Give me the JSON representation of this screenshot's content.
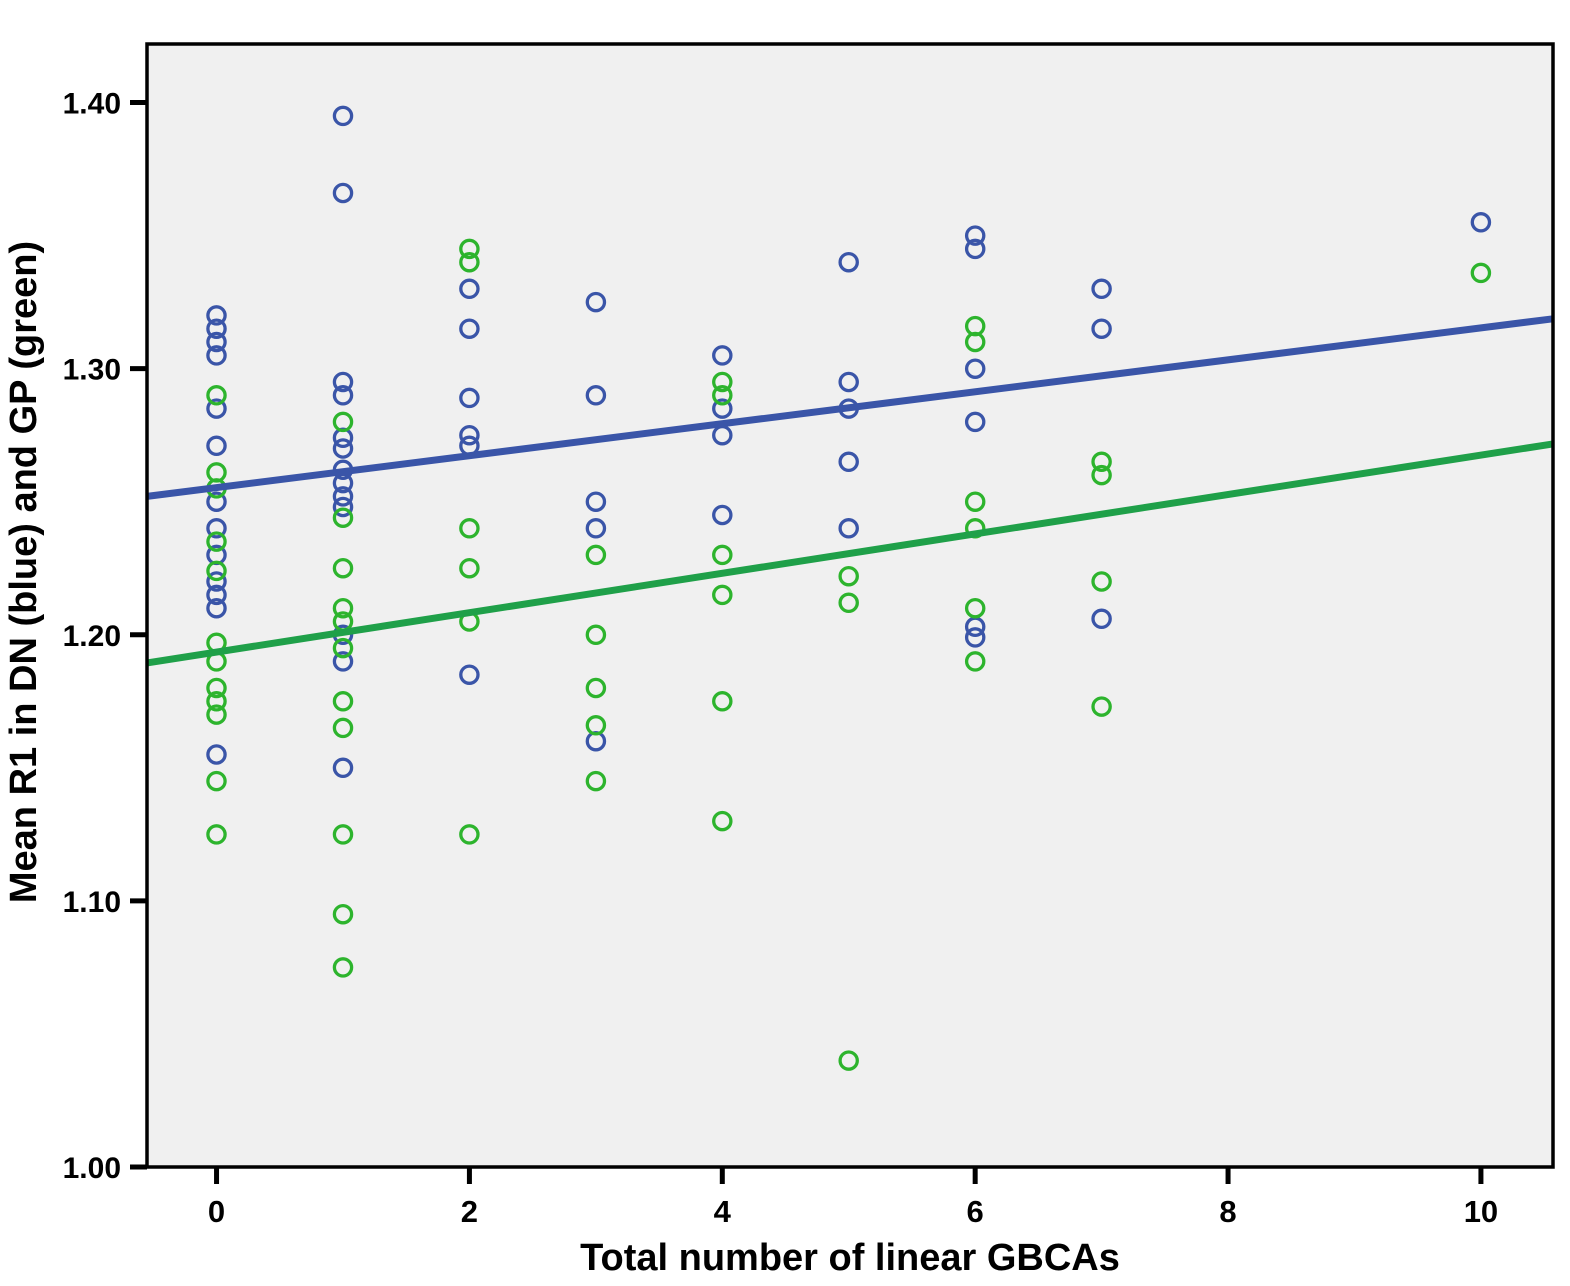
{
  "chart_data": {
    "type": "scatter",
    "title": "",
    "xlabel": "Total number of linear GBCAs",
    "ylabel": "Mean R1 in DN (blue) and GP (green)",
    "xlim": [
      -0.55,
      10.57
    ],
    "ylim": [
      1.0,
      1.422
    ],
    "x_ticks": [
      0,
      2,
      4,
      6,
      8,
      10
    ],
    "x_tick_labels": [
      "0",
      "2",
      "4",
      "6",
      "8",
      "10"
    ],
    "y_ticks": [
      1.0,
      1.1,
      1.2,
      1.3,
      1.4
    ],
    "y_tick_labels": [
      "1.00",
      "1.10",
      "1.20",
      "1.30",
      "1.40"
    ],
    "grid": false,
    "legend": "none",
    "plot_bg": "#F0F0F0",
    "frame_color": "#000000",
    "colors": {
      "dn_blue": "#3A55A8",
      "gp_green": "#2DB42D",
      "gp_line_green": "#1FA049"
    },
    "series": [
      {
        "name": "DN (blue)",
        "color": "#3A55A8",
        "marker": "open-circle",
        "points": [
          [
            0,
            1.32
          ],
          [
            0,
            1.315
          ],
          [
            0,
            1.31
          ],
          [
            0,
            1.305
          ],
          [
            0,
            1.285
          ],
          [
            0,
            1.271
          ],
          [
            0,
            1.25
          ],
          [
            0,
            1.24
          ],
          [
            0,
            1.23
          ],
          [
            0,
            1.22
          ],
          [
            0,
            1.215
          ],
          [
            0,
            1.21
          ],
          [
            0,
            1.155
          ],
          [
            1,
            1.395
          ],
          [
            1,
            1.366
          ],
          [
            1,
            1.295
          ],
          [
            1,
            1.29
          ],
          [
            1,
            1.274
          ],
          [
            1,
            1.27
          ],
          [
            1,
            1.262
          ],
          [
            1,
            1.257
          ],
          [
            1,
            1.252
          ],
          [
            1,
            1.248
          ],
          [
            1,
            1.2
          ],
          [
            1,
            1.19
          ],
          [
            1,
            1.15
          ],
          [
            2,
            1.33
          ],
          [
            2,
            1.315
          ],
          [
            2,
            1.289
          ],
          [
            2,
            1.275
          ],
          [
            2,
            1.271
          ],
          [
            2,
            1.185
          ],
          [
            3,
            1.325
          ],
          [
            3,
            1.29
          ],
          [
            3,
            1.25
          ],
          [
            3,
            1.24
          ],
          [
            3,
            1.16
          ],
          [
            4,
            1.305
          ],
          [
            4,
            1.285
          ],
          [
            4,
            1.275
          ],
          [
            4,
            1.245
          ],
          [
            5,
            1.34
          ],
          [
            5,
            1.295
          ],
          [
            5,
            1.285
          ],
          [
            5,
            1.265
          ],
          [
            5,
            1.24
          ],
          [
            6,
            1.35
          ],
          [
            6,
            1.345
          ],
          [
            6,
            1.3
          ],
          [
            6,
            1.28
          ],
          [
            6,
            1.203
          ],
          [
            6,
            1.199
          ],
          [
            7,
            1.33
          ],
          [
            7,
            1.315
          ],
          [
            7,
            1.206
          ],
          [
            10,
            1.355
          ]
        ]
      },
      {
        "name": "GP (green)",
        "color": "#2DB42D",
        "marker": "open-circle",
        "points": [
          [
            0,
            1.29
          ],
          [
            0,
            1.261
          ],
          [
            0,
            1.255
          ],
          [
            0,
            1.235
          ],
          [
            0,
            1.224
          ],
          [
            0,
            1.197
          ],
          [
            0,
            1.19
          ],
          [
            0,
            1.18
          ],
          [
            0,
            1.175
          ],
          [
            0,
            1.17
          ],
          [
            0,
            1.145
          ],
          [
            0,
            1.125
          ],
          [
            1,
            1.28
          ],
          [
            1,
            1.244
          ],
          [
            1,
            1.225
          ],
          [
            1,
            1.21
          ],
          [
            1,
            1.205
          ],
          [
            1,
            1.195
          ],
          [
            1,
            1.175
          ],
          [
            1,
            1.165
          ],
          [
            1,
            1.125
          ],
          [
            1,
            1.095
          ],
          [
            1,
            1.075
          ],
          [
            2,
            1.345
          ],
          [
            2,
            1.34
          ],
          [
            2,
            1.24
          ],
          [
            2,
            1.225
          ],
          [
            2,
            1.205
          ],
          [
            2,
            1.125
          ],
          [
            3,
            1.23
          ],
          [
            3,
            1.2
          ],
          [
            3,
            1.18
          ],
          [
            3,
            1.166
          ],
          [
            3,
            1.145
          ],
          [
            4,
            1.295
          ],
          [
            4,
            1.29
          ],
          [
            4,
            1.23
          ],
          [
            4,
            1.215
          ],
          [
            4,
            1.175
          ],
          [
            4,
            1.13
          ],
          [
            5,
            1.222
          ],
          [
            5,
            1.212
          ],
          [
            5,
            1.04
          ],
          [
            6,
            1.316
          ],
          [
            6,
            1.31
          ],
          [
            6,
            1.25
          ],
          [
            6,
            1.24
          ],
          [
            6,
            1.21
          ],
          [
            6,
            1.19
          ],
          [
            7,
            1.265
          ],
          [
            7,
            1.26
          ],
          [
            7,
            1.22
          ],
          [
            7,
            1.173
          ],
          [
            10,
            1.336
          ]
        ]
      }
    ],
    "fit_lines": [
      {
        "series": "DN (blue)",
        "color": "#3A55A8",
        "intercept": 1.2553,
        "slope": 0.006
      },
      {
        "series": "GP (green)",
        "color": "#1FA049",
        "intercept": 1.1935,
        "slope": 0.0074
      }
    ]
  }
}
